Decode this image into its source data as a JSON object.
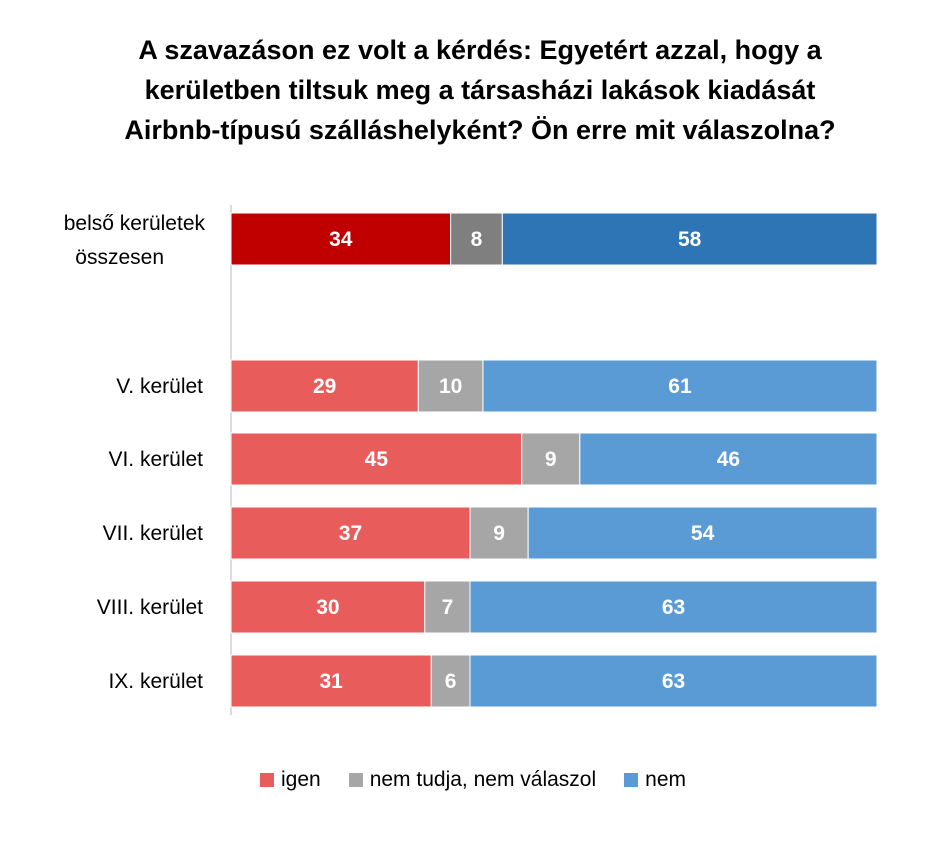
{
  "chart_data": {
    "type": "bar",
    "orientation": "horizontal",
    "stacked": true,
    "title": [
      "A szavazáson ez volt a kérdés: Egyetért azzal, hogy a",
      "kerületben tiltsuk meg a társasházi lakások kiadását",
      "Airbnb-típusú szálláshelyként? Ön erre mit válaszolna?"
    ],
    "categories": [
      [
        "belső kerületek",
        "összesen"
      ],
      [
        "V. kerület"
      ],
      [
        "VI. kerület"
      ],
      [
        "VII. kerület"
      ],
      [
        "VIII. kerület"
      ],
      [
        "IX. kerület"
      ]
    ],
    "series": [
      {
        "name": "igen",
        "values": [
          34,
          29,
          45,
          37,
          30,
          31
        ],
        "color": "#e95c5c",
        "highlight_color": "#c00000"
      },
      {
        "name": "nem tudja, nem válaszol",
        "values": [
          8,
          10,
          9,
          9,
          7,
          6
        ],
        "color": "#a6a6a6",
        "highlight_color": "#7f7f7f"
      },
      {
        "name": "nem",
        "values": [
          58,
          61,
          46,
          54,
          63,
          63
        ],
        "color": "#5b9bd5",
        "highlight_color": "#2e75b6"
      }
    ],
    "highlighted_category_index": 0,
    "xlim": [
      0,
      100
    ],
    "grid": false,
    "legend_position": "bottom"
  }
}
